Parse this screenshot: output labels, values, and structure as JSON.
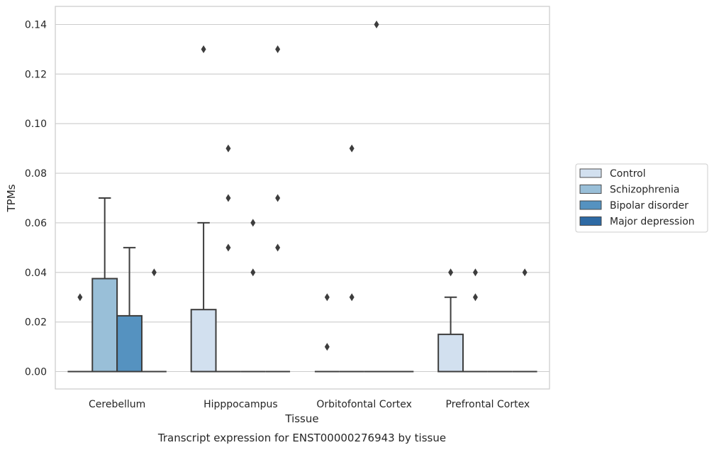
{
  "caption": "Transcript expression for ENST00000276943 by tissue",
  "colors": {
    "Control": "#d2e0ef",
    "Schizophrenia": "#99bfd8",
    "Bipolar disorder": "#5592c0",
    "Major depression": "#2e6aa4"
  },
  "chart_data": {
    "type": "box",
    "title": "",
    "xlabel": "Tissue",
    "ylabel": "TPMs",
    "ylim": [
      -0.007,
      0.147
    ],
    "yticks": [
      0.0,
      0.02,
      0.04,
      0.06,
      0.08,
      0.1,
      0.12,
      0.14
    ],
    "ytick_labels": [
      "0.00",
      "0.02",
      "0.04",
      "0.06",
      "0.08",
      "0.10",
      "0.12",
      "0.14"
    ],
    "grid": "horizontal",
    "legend_position": "right",
    "categories": [
      "Cerebellum",
      "Hipppocampus",
      "Orbitofontal Cortex",
      "Prefrontal Cortex"
    ],
    "series": [
      {
        "name": "Control",
        "boxes": [
          {
            "q1": 0,
            "median": 0,
            "q3": 0,
            "whisker_low": 0,
            "whisker_high": 0,
            "outliers": [
              0.03
            ]
          },
          {
            "q1": 0,
            "median": 0,
            "q3": 0.025,
            "whisker_low": 0,
            "whisker_high": 0.06,
            "outliers": [
              0.13
            ]
          },
          {
            "q1": 0,
            "median": 0,
            "q3": 0,
            "whisker_low": 0,
            "whisker_high": 0,
            "outliers": [
              0.01,
              0.03
            ]
          },
          {
            "q1": 0,
            "median": 0,
            "q3": 0.015,
            "whisker_low": 0,
            "whisker_high": 0.03,
            "outliers": [
              0.04
            ]
          }
        ]
      },
      {
        "name": "Schizophrenia",
        "boxes": [
          {
            "q1": 0,
            "median": 0,
            "q3": 0.0375,
            "whisker_low": 0,
            "whisker_high": 0.07,
            "outliers": []
          },
          {
            "q1": 0,
            "median": 0,
            "q3": 0,
            "whisker_low": 0,
            "whisker_high": 0,
            "outliers": [
              0.09,
              0.07,
              0.05
            ]
          },
          {
            "q1": 0,
            "median": 0,
            "q3": 0,
            "whisker_low": 0,
            "whisker_high": 0,
            "outliers": [
              0.09,
              0.03
            ]
          },
          {
            "q1": 0,
            "median": 0,
            "q3": 0,
            "whisker_low": 0,
            "whisker_high": 0,
            "outliers": [
              0.04,
              0.03
            ]
          }
        ]
      },
      {
        "name": "Bipolar disorder",
        "boxes": [
          {
            "q1": 0,
            "median": 0,
            "q3": 0.0225,
            "whisker_low": 0,
            "whisker_high": 0.05,
            "outliers": []
          },
          {
            "q1": 0,
            "median": 0,
            "q3": 0,
            "whisker_low": 0,
            "whisker_high": 0,
            "outliers": [
              0.06,
              0.04
            ]
          },
          {
            "q1": 0,
            "median": 0,
            "q3": 0,
            "whisker_low": 0,
            "whisker_high": 0,
            "outliers": [
              0.14
            ]
          },
          {
            "q1": 0,
            "median": 0,
            "q3": 0,
            "whisker_low": 0,
            "whisker_high": 0,
            "outliers": []
          }
        ]
      },
      {
        "name": "Major depression",
        "boxes": [
          {
            "q1": 0,
            "median": 0,
            "q3": 0,
            "whisker_low": 0,
            "whisker_high": 0,
            "outliers": [
              0.04
            ]
          },
          {
            "q1": 0,
            "median": 0,
            "q3": 0,
            "whisker_low": 0,
            "whisker_high": 0,
            "outliers": [
              0.13,
              0.07,
              0.05
            ]
          },
          {
            "q1": 0,
            "median": 0,
            "q3": 0,
            "whisker_low": 0,
            "whisker_high": 0,
            "outliers": []
          },
          {
            "q1": 0,
            "median": 0,
            "q3": 0,
            "whisker_low": 0,
            "whisker_high": 0,
            "outliers": [
              0.04
            ]
          }
        ]
      }
    ]
  }
}
